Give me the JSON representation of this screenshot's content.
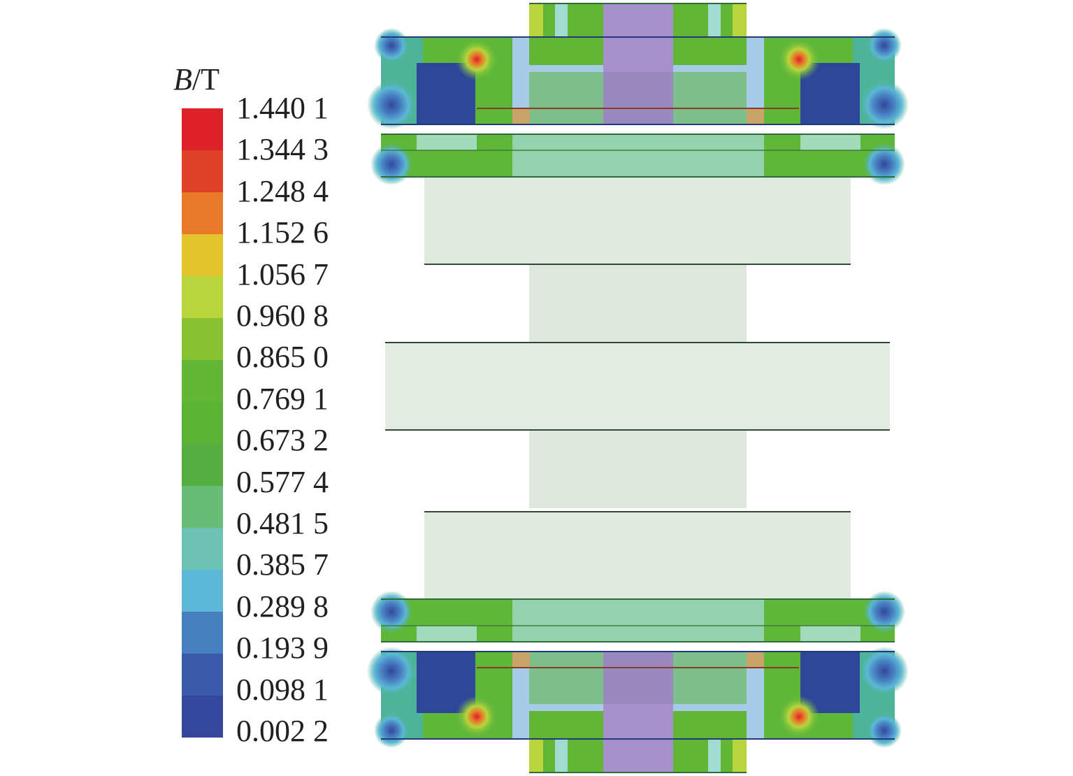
{
  "legend": {
    "title_var": "B",
    "title_unit": "/T",
    "labels": [
      "1.440 1",
      "1.344 3",
      "1.248 4",
      "1.152 6",
      "1.056 7",
      "0.960 8",
      "0.865 0",
      "0.769 1",
      "0.673 2",
      "0.577 4",
      "0.481 5",
      "0.385 7",
      "0.289 8",
      "0.193 9",
      "0.098 1",
      "0.002 2"
    ],
    "colors": [
      "#dc2128",
      "#df4127",
      "#e87a2a",
      "#e4c42d",
      "#b8d53b",
      "#88c233",
      "#62b535",
      "#5cb234",
      "#56ae40",
      "#67bc78",
      "#6cc3b3",
      "#5cb8d6",
      "#4780c1",
      "#3a5aa9",
      "#34479c"
    ]
  },
  "diagram": {
    "colors": {
      "field_green": "#5fb73a",
      "field_teal": "#4fb39a",
      "low_field": "#2f4799",
      "hot": "#dc2128",
      "nonmagnetic": "#e2e9e0",
      "frame": "#a6cbe6",
      "purple": "#a58fcc",
      "insert": "#a2dbbb",
      "copper": "#c9a46a"
    }
  }
}
